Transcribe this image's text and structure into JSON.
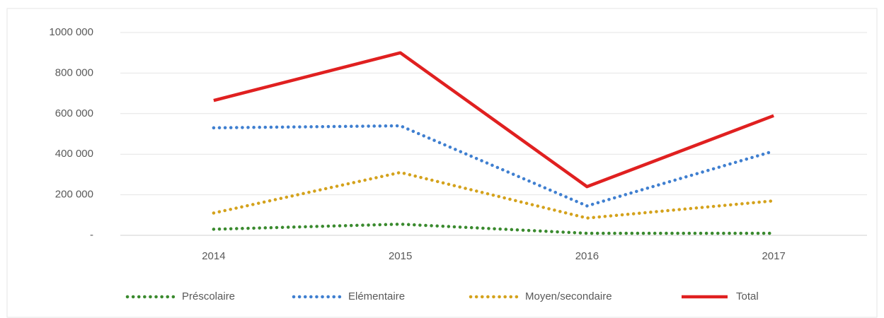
{
  "chart_data": {
    "type": "line",
    "categories": [
      "2014",
      "2015",
      "2016",
      "2017"
    ],
    "series": [
      {
        "name": "Préscolaire",
        "color": "#3a8a2e",
        "style": "dotted",
        "values": [
          30000,
          55000,
          10000,
          10000
        ]
      },
      {
        "name": "Elémentaire",
        "color": "#3f7fd0",
        "style": "dotted",
        "values": [
          530000,
          540000,
          145000,
          415000
        ]
      },
      {
        "name": "Moyen/secondaire",
        "color": "#d4a21c",
        "style": "dotted",
        "values": [
          110000,
          310000,
          85000,
          170000
        ]
      },
      {
        "name": "Total",
        "color": "#e02020",
        "style": "solid",
        "values": [
          665000,
          900000,
          240000,
          590000
        ]
      }
    ],
    "ylim": [
      0,
      1000000
    ],
    "yticks": [
      {
        "value": 0,
        "label": "-"
      },
      {
        "value": 200000,
        "label": "200 000"
      },
      {
        "value": 400000,
        "label": "400 000"
      },
      {
        "value": 600000,
        "label": "600 000"
      },
      {
        "value": 800000,
        "label": "800 000"
      },
      {
        "value": 1000000,
        "label": "1000 000"
      }
    ],
    "grid": true,
    "legend": "bottom"
  }
}
